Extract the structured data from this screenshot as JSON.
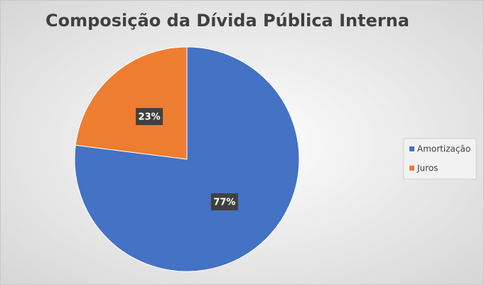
{
  "chart_data": {
    "type": "pie",
    "title": "Composição da Dívida Pública Interna",
    "categories": [
      "Amortização",
      "Juros"
    ],
    "values": [
      77,
      23
    ],
    "value_labels": [
      "77%",
      "23%"
    ],
    "colors": [
      "#4472c4",
      "#ed7d31"
    ],
    "legend": "right"
  }
}
